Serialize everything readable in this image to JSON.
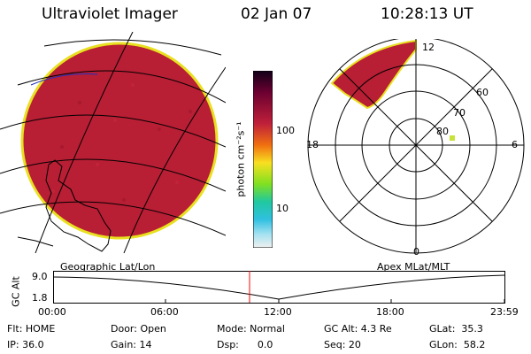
{
  "header": {
    "title": "Ultraviolet Imager",
    "date": "02 Jan 07",
    "time": "10:28:13 UT"
  },
  "colorbar": {
    "unit": "photon cm⁻²s⁻¹",
    "tick_labels": [
      "100",
      "10"
    ]
  },
  "polar_plot": {
    "mlt_labels": {
      "top": "12",
      "left": "18",
      "right": "6",
      "bottom": "0"
    },
    "lat_labels": [
      "60",
      "70",
      "80"
    ]
  },
  "altitude_panel": {
    "left_title": "Geographic Lat/Lon",
    "right_title": "Apex MLat/MLT",
    "y_label": "GC Alt",
    "y_ticks": [
      "9.0",
      "1.8"
    ],
    "x_ticks": [
      "00:00",
      "06:00",
      "12:00",
      "18:00",
      "23:59"
    ]
  },
  "status": {
    "flt": "Flt: HOME",
    "ip": "IP: 36.0",
    "door": "Door: Open",
    "gain": "Gain: 14",
    "mode": "Mode: Normal",
    "dsp": "Dsp:      0.0",
    "gc_alt": "GC Alt: 4.3 Re",
    "seq": "Seq: 20",
    "glat": "GLat:  35.3",
    "glon": "GLon:  58.2"
  },
  "colors": {
    "disk_fill": "#b81e34",
    "disk_edge": "#e8e020",
    "marker": "#c8e23a",
    "time_marker": "#ff0000"
  }
}
